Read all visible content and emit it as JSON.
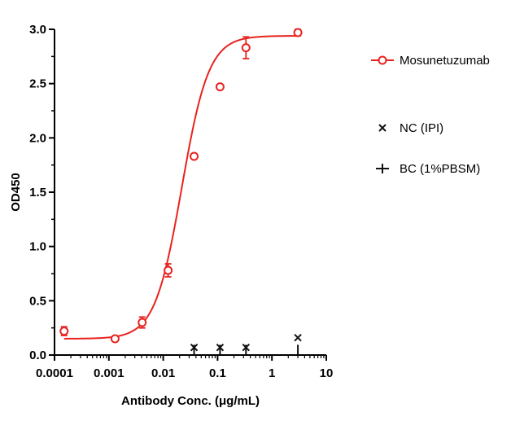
{
  "chart_data": {
    "type": "scatter",
    "title": "",
    "xlabel": "Antibody Conc. (μg/mL)",
    "ylabel": "OD450",
    "x_scale": "log",
    "xlim": [
      0.0001,
      10
    ],
    "ylim": [
      0,
      3.0
    ],
    "x_ticks": [
      0.0001,
      0.001,
      0.01,
      0.1,
      1,
      10
    ],
    "x_tick_labels": [
      "0.0001",
      "0.001",
      "0.01",
      "0.1",
      "1",
      "10"
    ],
    "y_ticks": [
      0,
      0.5,
      1.0,
      1.5,
      2.0,
      2.5,
      3.0
    ],
    "y_tick_labels": [
      "0.0",
      "0.5",
      "1.0",
      "1.5",
      "2.0",
      "2.5",
      "3.0"
    ],
    "grid": false,
    "legend_position": "right",
    "series": [
      {
        "name": "Mosunetuzumab",
        "color": "#e8231f",
        "marker": "open-circle",
        "fit": "sigmoid",
        "fit_params": {
          "bottom": 0.15,
          "top": 2.94,
          "ec50": 0.022,
          "hill": 1.75
        },
        "x": [
          0.00015,
          0.0013,
          0.0041,
          0.0123,
          0.037,
          0.111,
          0.333,
          3.0
        ],
        "y": [
          0.22,
          0.15,
          0.3,
          0.78,
          1.83,
          2.47,
          2.83,
          2.97
        ],
        "err": [
          0.04,
          0.02,
          0.05,
          0.06,
          0.02,
          0.02,
          0.1,
          0.03
        ]
      },
      {
        "name": "NC (IPI)",
        "color": "#111111",
        "marker": "x",
        "x": [
          0.037,
          0.111,
          0.333,
          3.0
        ],
        "y": [
          0.07,
          0.07,
          0.07,
          0.16
        ],
        "err": [
          0,
          0,
          0,
          0
        ]
      },
      {
        "name": "BC (1%PBSM)",
        "color": "#111111",
        "marker": "plus",
        "x": [
          0.037,
          0.111,
          0.333,
          3.0
        ],
        "y": [
          0.05,
          0.05,
          0.05,
          0.05
        ],
        "err": [
          0,
          0,
          0,
          0
        ]
      }
    ]
  }
}
